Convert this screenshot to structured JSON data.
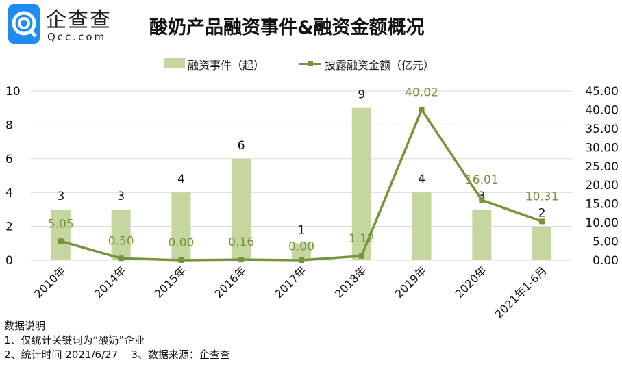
{
  "logo": {
    "name": "企查查",
    "sub": "Qcc.com"
  },
  "chart_data": {
    "type": "bar+line",
    "title": "酸奶产品融资事件&融资金额概况",
    "categories": [
      "2010年",
      "2014年",
      "2015年",
      "2016年",
      "2017年",
      "2018年",
      "2019年",
      "2020年",
      "2021年1-6月"
    ],
    "series": [
      {
        "name": "融资事件（起）",
        "type": "bar",
        "axis": "left",
        "color": "#c5d79e",
        "values": [
          3,
          3,
          4,
          6,
          1,
          9,
          4,
          3,
          2
        ],
        "labels": [
          "3",
          "3",
          "4",
          "6",
          "1",
          "9",
          "4",
          "3",
          "2"
        ]
      },
      {
        "name": "披露融资金额（亿元）",
        "type": "line",
        "axis": "right",
        "color": "#77933c",
        "values": [
          5.05,
          0.5,
          0.0,
          0.16,
          0.0,
          1.12,
          40.02,
          16.01,
          10.31
        ],
        "labels": [
          "5.05",
          "0.50",
          "0.00",
          "0.16",
          "0.00",
          "1.12",
          "40.02",
          "16.01",
          "10.31"
        ]
      }
    ],
    "yleft": {
      "lim": [
        0,
        10
      ],
      "ticks": [
        "0",
        "2",
        "4",
        "6",
        "8",
        "10"
      ]
    },
    "yright": {
      "lim": [
        0,
        45
      ],
      "ticks": [
        "0.00",
        "5.00",
        "10.00",
        "15.00",
        "20.00",
        "25.00",
        "30.00",
        "35.00",
        "40.00",
        "45.00"
      ]
    },
    "grid": true,
    "legend": "top-center"
  },
  "notes": {
    "heading": "数据说明",
    "line1": "1、仅统计关键词为“酸奶”企业",
    "line2a": "2、统计时间 2021/6/27",
    "line2b": "3、数据来源：企查查"
  }
}
